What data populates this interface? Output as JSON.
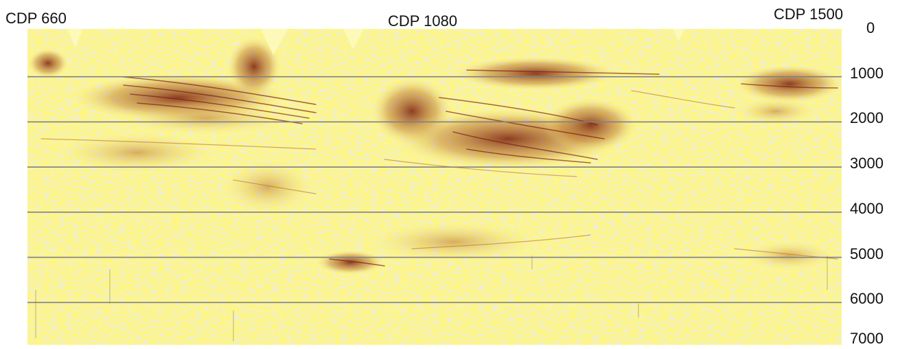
{
  "section": {
    "top_labels": [
      "CDP 660",
      "CDP 1080",
      "CDP 1500"
    ],
    "time_ticks": [
      "0",
      "1000",
      "2000",
      "3000",
      "4000",
      "5000",
      "6000",
      "7000"
    ],
    "gridline_values": [
      1000,
      2000,
      3000,
      4000,
      5000,
      6000
    ],
    "time_range": [
      0,
      7000
    ]
  },
  "colors": {
    "background": "#fdf48a",
    "gap": "#d6d6d0",
    "strong_reflector": "#7a1d0e",
    "medium_reflector": "#b9732f",
    "light_reflector": "#fff35a",
    "gridline": "#808080"
  }
}
